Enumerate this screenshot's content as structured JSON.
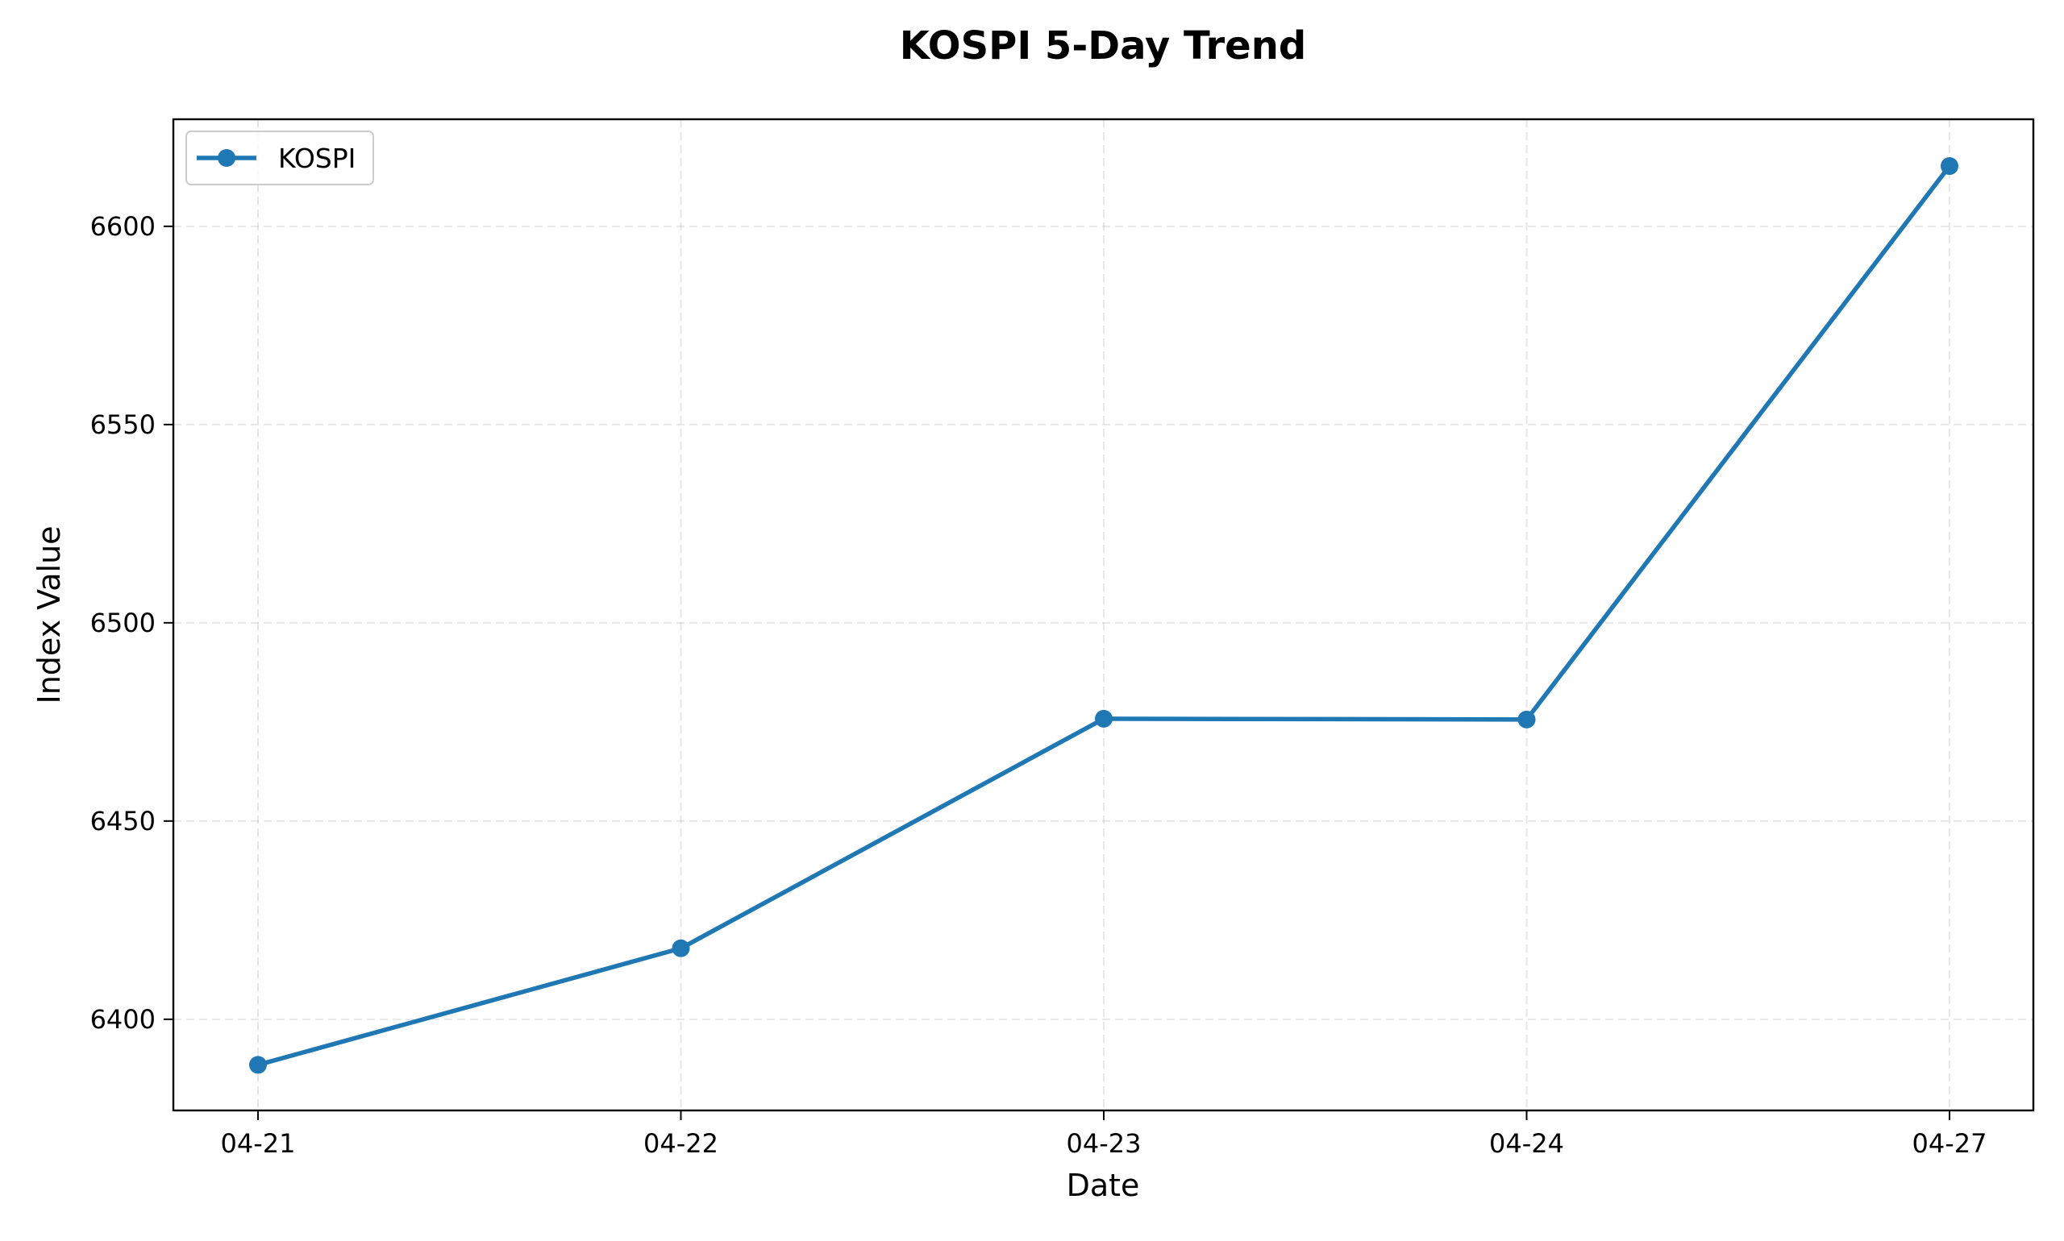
{
  "chart_data": {
    "type": "line",
    "title": "KOSPI 5-Day Trend",
    "xlabel": "Date",
    "ylabel": "Index Value",
    "categories": [
      "04-21",
      "04-22",
      "04-23",
      "04-24",
      "04-27"
    ],
    "series": [
      {
        "name": "KOSPI",
        "values": [
          6388.5,
          6417.9,
          6475.8,
          6475.6,
          6615.2
        ],
        "color": "#1f77b4",
        "marker": "circle"
      }
    ],
    "ylim": [
      6377,
      6627
    ],
    "yticks": [
      6400,
      6450,
      6500,
      6550,
      6600
    ],
    "grid": true,
    "grid_style": "dashed",
    "legend_position": "top-left"
  }
}
